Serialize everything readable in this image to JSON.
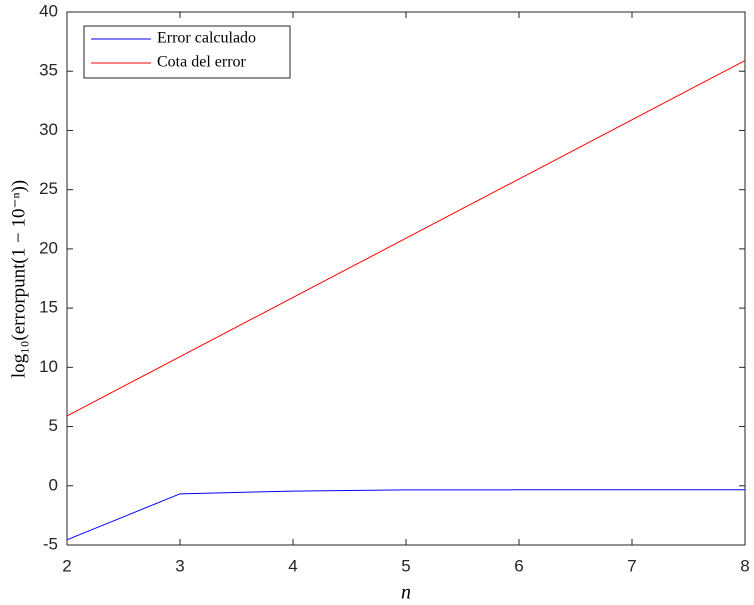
{
  "chart_data": {
    "type": "line",
    "xlabel": "n",
    "ylabel": "log₁₀(errorpunt(1 − 10⁻ⁿ))",
    "x": [
      2,
      3,
      4,
      5,
      6,
      7,
      8
    ],
    "series": [
      {
        "name": "Error calculado",
        "color": "#0000ff",
        "values": [
          -4.56,
          -0.68,
          -0.45,
          -0.35,
          -0.34,
          -0.34,
          -0.34
        ]
      },
      {
        "name": "Cota del error",
        "color": "#ff0000",
        "values": [
          5.9,
          10.9,
          15.9,
          20.9,
          25.9,
          30.9,
          35.9
        ]
      }
    ],
    "xlim": [
      2,
      8
    ],
    "xticks": [
      2,
      3,
      4,
      5,
      6,
      7,
      8
    ],
    "ylim": [
      -5,
      40
    ],
    "yticks": [
      -5,
      0,
      5,
      10,
      15,
      20,
      25,
      30,
      35,
      40
    ],
    "legend": "upper-left",
    "grid": false
  }
}
